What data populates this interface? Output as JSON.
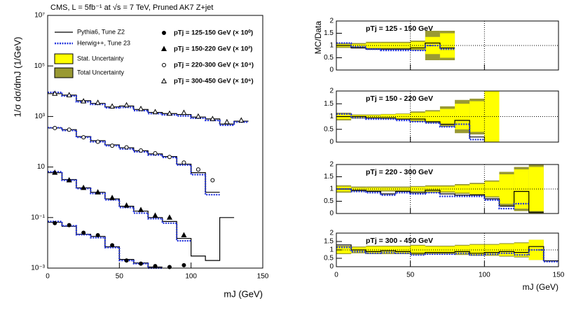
{
  "chart_data": [
    {
      "type": "step",
      "title": "CMS, L = 5fb⁻¹ at √s = 7 TeV, Pruned AK7 Z+jet",
      "ylabel": "1/σ dσ/dmJ (1/GeV)",
      "xlabel": "mJ (GeV)",
      "log_y": true,
      "bins": [
        0,
        10,
        20,
        30,
        40,
        50,
        60,
        70,
        80,
        90,
        100,
        110,
        120,
        130,
        140,
        150
      ],
      "xlim": [
        0,
        150
      ],
      "xticks": [
        0,
        50,
        100,
        150
      ],
      "ylim": [
        0.001,
        10000000
      ],
      "yticks": [
        {
          "value": 0.001,
          "label": "10⁻³"
        },
        {
          "value": 0.1,
          "label": "10⁻¹"
        },
        10,
        {
          "value": 1000,
          "label": "10³"
        },
        {
          "value": 100000,
          "label": "10⁵"
        },
        {
          "value": 10000000,
          "label": "10⁷"
        }
      ],
      "mc": [
        {
          "name": "Pythia6, Tune Z2",
          "color": "#000000",
          "dashed": false,
          "values": [
            [
              0.065,
              0.045,
              0.022,
              0.018,
              0.007,
              0.0022,
              0.0016,
              0.0011,
              null,
              null,
              null,
              null,
              null,
              null,
              null
            ],
            [
              6,
              3.2,
              1.5,
              1,
              0.55,
              0.28,
              0.18,
              0.1,
              0.07,
              0.015,
              0.003,
              0.002,
              0.1,
              null,
              null
            ],
            [
              350,
              300,
              160,
              110,
              75,
              58,
              44,
              33,
              26,
              13,
              6,
              1,
              null,
              null,
              null
            ],
            [
              8000,
              7000,
              4200,
              3300,
              2400,
              2600,
              1900,
              1450,
              1300,
              1200,
              950,
              800,
              500,
              650,
              null
            ]
          ]
        },
        {
          "name": "Herwig++, Tune 23",
          "color": "#2233dd",
          "dashed": true,
          "values": [
            [
              0.07,
              0.047,
              0.021,
              0.016,
              0.0065,
              0.002,
              0.0015,
              0.001,
              null,
              null,
              null,
              null,
              null,
              null,
              null
            ],
            [
              6.5,
              3,
              1.4,
              0.9,
              0.5,
              0.25,
              0.15,
              0.09,
              0.06,
              0.012,
              null,
              null,
              null,
              null,
              null
            ],
            [
              360,
              280,
              150,
              100,
              70,
              52,
              40,
              30,
              24,
              12,
              5,
              0.8,
              null,
              null,
              null
            ],
            [
              9000,
              6500,
              3800,
              3000,
              2200,
              2300,
              1700,
              1300,
              1150,
              1050,
              850,
              700,
              450,
              600,
              null
            ]
          ]
        }
      ],
      "bands": [
        {
          "name": "Stat. Uncertainty",
          "color": "#ffff00"
        },
        {
          "name": "Total Uncertainty",
          "color": "#999933"
        }
      ],
      "data": [
        {
          "name": "pTj = 125-150 GeV (× 10⁰)",
          "marker": "filled-circle",
          "values": [
            0.06,
            0.05,
            0.025,
            0.02,
            0.008,
            0.002,
            0.0015,
            0.0012,
            0.0011,
            0.0013,
            null,
            null,
            null,
            null,
            null
          ]
        },
        {
          "name": "pTj = 150-220 GeV (× 10²)",
          "marker": "filled-triangle",
          "values": [
            6,
            3,
            1.5,
            1,
            0.6,
            0.3,
            0.2,
            0.12,
            0.1,
            0.02,
            null,
            null,
            null,
            null,
            null
          ]
        },
        {
          "name": "pTj = 220-300 GeV (× 10⁴)",
          "marker": "open-circle",
          "values": [
            350,
            300,
            150,
            100,
            70,
            60,
            45,
            35,
            25,
            15,
            8,
            3,
            null,
            null,
            null
          ]
        },
        {
          "name": "pTj = 300-450 GeV (× 10⁶)",
          "marker": "open-triangle",
          "values": [
            8000,
            7000,
            4000,
            3500,
            2500,
            2800,
            2000,
            1500,
            1300,
            1400,
            1000,
            800,
            600,
            700,
            null
          ]
        }
      ]
    },
    {
      "type": "ratio",
      "label": "pTj = 125 - 150 GeV",
      "ylabel": "MC/Data",
      "bins": [
        0,
        10,
        20,
        30,
        40,
        50,
        60,
        70,
        80,
        90,
        100,
        110,
        120,
        130,
        140,
        150
      ],
      "xlim": [
        0,
        150
      ],
      "xticks": [
        0,
        50,
        100,
        150
      ],
      "ylim": [
        0,
        2
      ],
      "yticks": [
        0,
        0.5,
        1,
        1.5,
        2
      ],
      "pythia": [
        1.0,
        0.9,
        0.85,
        0.85,
        0.85,
        0.9,
        1.1,
        0.9,
        null,
        null,
        null,
        null,
        null,
        null,
        null
      ],
      "herwig": [
        1.1,
        0.95,
        0.85,
        0.8,
        0.8,
        0.8,
        1.0,
        0.85,
        null,
        null,
        null,
        null,
        null,
        null,
        null
      ],
      "stat": [
        0.05,
        0.05,
        0.1,
        0.1,
        0.1,
        0.15,
        0.35,
        0.5,
        null,
        null,
        null,
        null,
        null,
        null,
        null
      ],
      "total": [
        0.1,
        0.1,
        0.15,
        0.15,
        0.15,
        0.2,
        0.6,
        0.6,
        null,
        null,
        null,
        null,
        null,
        null,
        null
      ]
    },
    {
      "type": "ratio",
      "label": "pTj = 150 - 220 GeV",
      "bins": [
        0,
        10,
        20,
        30,
        40,
        50,
        60,
        70,
        80,
        90,
        100,
        110,
        120,
        130,
        140,
        150
      ],
      "xlim": [
        0,
        150
      ],
      "xticks": [
        0,
        50,
        100,
        150
      ],
      "ylim": [
        0,
        2
      ],
      "yticks": [
        0,
        0.5,
        1,
        1.5,
        2
      ],
      "pythia": [
        1.0,
        1.0,
        0.95,
        0.95,
        0.9,
        0.9,
        0.8,
        0.7,
        0.85,
        0.2,
        null,
        null,
        null,
        null,
        null
      ],
      "herwig": [
        1.1,
        0.95,
        0.9,
        0.9,
        0.85,
        0.8,
        0.75,
        0.6,
        0.7,
        0.1,
        null,
        null,
        null,
        null,
        null
      ],
      "stat": [
        0.1,
        0.05,
        0.05,
        0.08,
        0.1,
        0.15,
        0.2,
        0.3,
        0.5,
        0.6,
        1.0,
        null,
        null,
        null,
        null
      ],
      "total": [
        0.15,
        0.08,
        0.08,
        0.1,
        0.12,
        0.2,
        0.25,
        0.4,
        0.65,
        0.7,
        1.0,
        null,
        null,
        null,
        null
      ]
    },
    {
      "type": "ratio",
      "label": "pTj = 220 - 300 GeV",
      "bins": [
        0,
        10,
        20,
        30,
        40,
        50,
        60,
        70,
        80,
        90,
        100,
        110,
        120,
        130,
        140,
        150
      ],
      "xlim": [
        0,
        150
      ],
      "xticks": [
        0,
        50,
        100,
        150
      ],
      "ylim": [
        0,
        2
      ],
      "yticks": [
        0,
        0.5,
        1,
        1.5,
        2
      ],
      "pythia": [
        1.0,
        0.95,
        0.9,
        0.8,
        0.9,
        0.85,
        0.95,
        0.8,
        0.75,
        0.75,
        0.6,
        0.3,
        0.9,
        0.05,
        null
      ],
      "herwig": [
        1.0,
        0.9,
        0.85,
        0.75,
        0.85,
        0.8,
        0.85,
        0.7,
        0.7,
        0.7,
        0.55,
        0.2,
        0.4,
        null,
        null
      ],
      "stat": [
        0.1,
        0.05,
        0.05,
        0.05,
        0.05,
        0.08,
        0.1,
        0.1,
        0.15,
        0.2,
        0.3,
        0.6,
        0.8,
        0.9,
        null
      ],
      "total": [
        0.15,
        0.1,
        0.1,
        0.1,
        0.1,
        0.12,
        0.15,
        0.15,
        0.2,
        0.25,
        0.35,
        0.7,
        0.9,
        1.0,
        null
      ]
    },
    {
      "type": "ratio",
      "label": "pTj = 300 - 450 GeV",
      "xlabel": "mJ (GeV)",
      "xtick_labels": true,
      "bins": [
        0,
        10,
        20,
        30,
        40,
        50,
        60,
        70,
        80,
        90,
        100,
        110,
        120,
        130,
        140,
        150
      ],
      "xlim": [
        0,
        150
      ],
      "xticks": [
        0,
        50,
        100,
        150
      ],
      "ylim": [
        0,
        2
      ],
      "yticks": [
        0,
        0.5,
        1,
        1.5,
        2
      ],
      "pythia": [
        1.3,
        1.0,
        0.9,
        0.95,
        0.9,
        0.8,
        0.85,
        0.85,
        0.9,
        0.8,
        0.85,
        0.9,
        0.85,
        1.2,
        0.35
      ],
      "herwig": [
        1.15,
        0.9,
        0.8,
        0.85,
        0.8,
        0.7,
        0.75,
        0.75,
        0.8,
        0.7,
        0.75,
        0.8,
        0.7,
        1.0,
        0.3
      ],
      "stat": [
        0.2,
        0.15,
        0.2,
        0.2,
        0.2,
        0.25,
        0.2,
        0.2,
        0.25,
        0.3,
        0.3,
        0.35,
        0.4,
        0.6,
        null
      ],
      "total": [
        0.25,
        0.2,
        0.25,
        0.25,
        0.25,
        0.3,
        0.25,
        0.25,
        0.3,
        0.35,
        0.35,
        0.4,
        0.45,
        0.6,
        null
      ]
    }
  ]
}
